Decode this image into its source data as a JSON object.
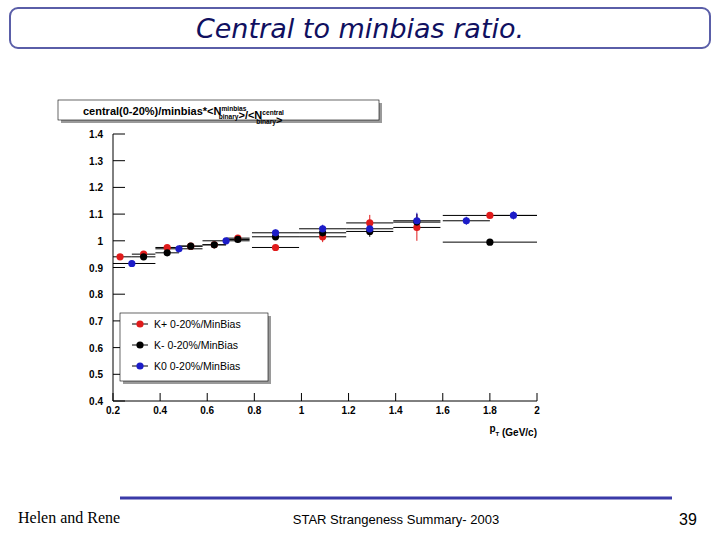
{
  "slide": {
    "title": "Central to minbias ratio.",
    "footer": {
      "author": "Helen and Rene",
      "event": "STAR Strangeness Summary- 2003",
      "page": "39"
    }
  },
  "chart_data": {
    "type": "scatter",
    "title": [
      {
        "text": "central(0-20%)/minbias*<N"
      },
      {
        "sup": "minbias",
        "sub": "binary"
      },
      {
        "text": ">/<N"
      },
      {
        "sup": "central",
        "sub": "binary"
      },
      {
        "text": ">"
      }
    ],
    "x_label": [
      {
        "text": "p"
      },
      {
        "sub": "T"
      },
      {
        "text": " (GeV/c)"
      }
    ],
    "xlim": [
      0.2,
      2
    ],
    "xticks": [
      0.2,
      0.4,
      0.6,
      0.8,
      1,
      1.2,
      1.4,
      1.6,
      1.8,
      2
    ],
    "ylim": [
      0.4,
      1.4
    ],
    "yticks": [
      0.4,
      0.5,
      0.6,
      0.7,
      0.8,
      0.9,
      1,
      1.1,
      1.2,
      1.3,
      1.4
    ],
    "legend": "bottom-left",
    "grid": false,
    "marker": "circle",
    "series": [
      {
        "name": "K+ 0-20%/MinBias",
        "color": "#e01b1b",
        "x": [
          0.23,
          0.33,
          0.43,
          0.53,
          0.63,
          0.73,
          0.89,
          1.09,
          1.29,
          1.49,
          1.8
        ],
        "values": [
          0.94,
          0.95,
          0.975,
          0.98,
          0.985,
          1.01,
          0.975,
          1.015,
          1.067,
          1.05,
          1.095
        ],
        "errors": [
          0.01,
          0.01,
          0.01,
          0.01,
          0.01,
          0.012,
          0.012,
          0.02,
          0.03,
          0.05,
          0.01
        ],
        "x_errors": [
          0.05,
          0.05,
          0.05,
          0.05,
          0.05,
          0.05,
          0.1,
          0.1,
          0.1,
          0.1,
          0.2
        ]
      },
      {
        "name": "K- 0-20%/MinBias",
        "color": "#000000",
        "x": [
          0.33,
          0.43,
          0.53,
          0.63,
          0.73,
          0.89,
          1.09,
          1.29,
          1.49,
          1.8
        ],
        "values": [
          0.94,
          0.955,
          0.98,
          0.985,
          1.005,
          1.015,
          1.03,
          1.035,
          1.07,
          0.995
        ],
        "errors": [
          0.01,
          0.01,
          0.01,
          0.01,
          0.012,
          0.012,
          0.015,
          0.02,
          0.03,
          0.01
        ],
        "x_errors": [
          0.05,
          0.05,
          0.05,
          0.05,
          0.05,
          0.1,
          0.1,
          0.1,
          0.1,
          0.2
        ]
      },
      {
        "name": "K0 0-20%/MinBias",
        "color": "#1c1cc8",
        "x": [
          0.28,
          0.48,
          0.68,
          0.89,
          1.09,
          1.29,
          1.49,
          1.7,
          1.9
        ],
        "values": [
          0.915,
          0.97,
          1.0,
          1.03,
          1.045,
          1.045,
          1.075,
          1.075,
          1.095
        ],
        "errors": [
          0.01,
          0.01,
          0.01,
          0.012,
          0.015,
          0.02,
          0.03,
          0.015,
          0.015
        ],
        "x_errors": [
          0.1,
          0.1,
          0.1,
          0.1,
          0.1,
          0.1,
          0.1,
          0.1,
          0.1
        ]
      }
    ]
  }
}
